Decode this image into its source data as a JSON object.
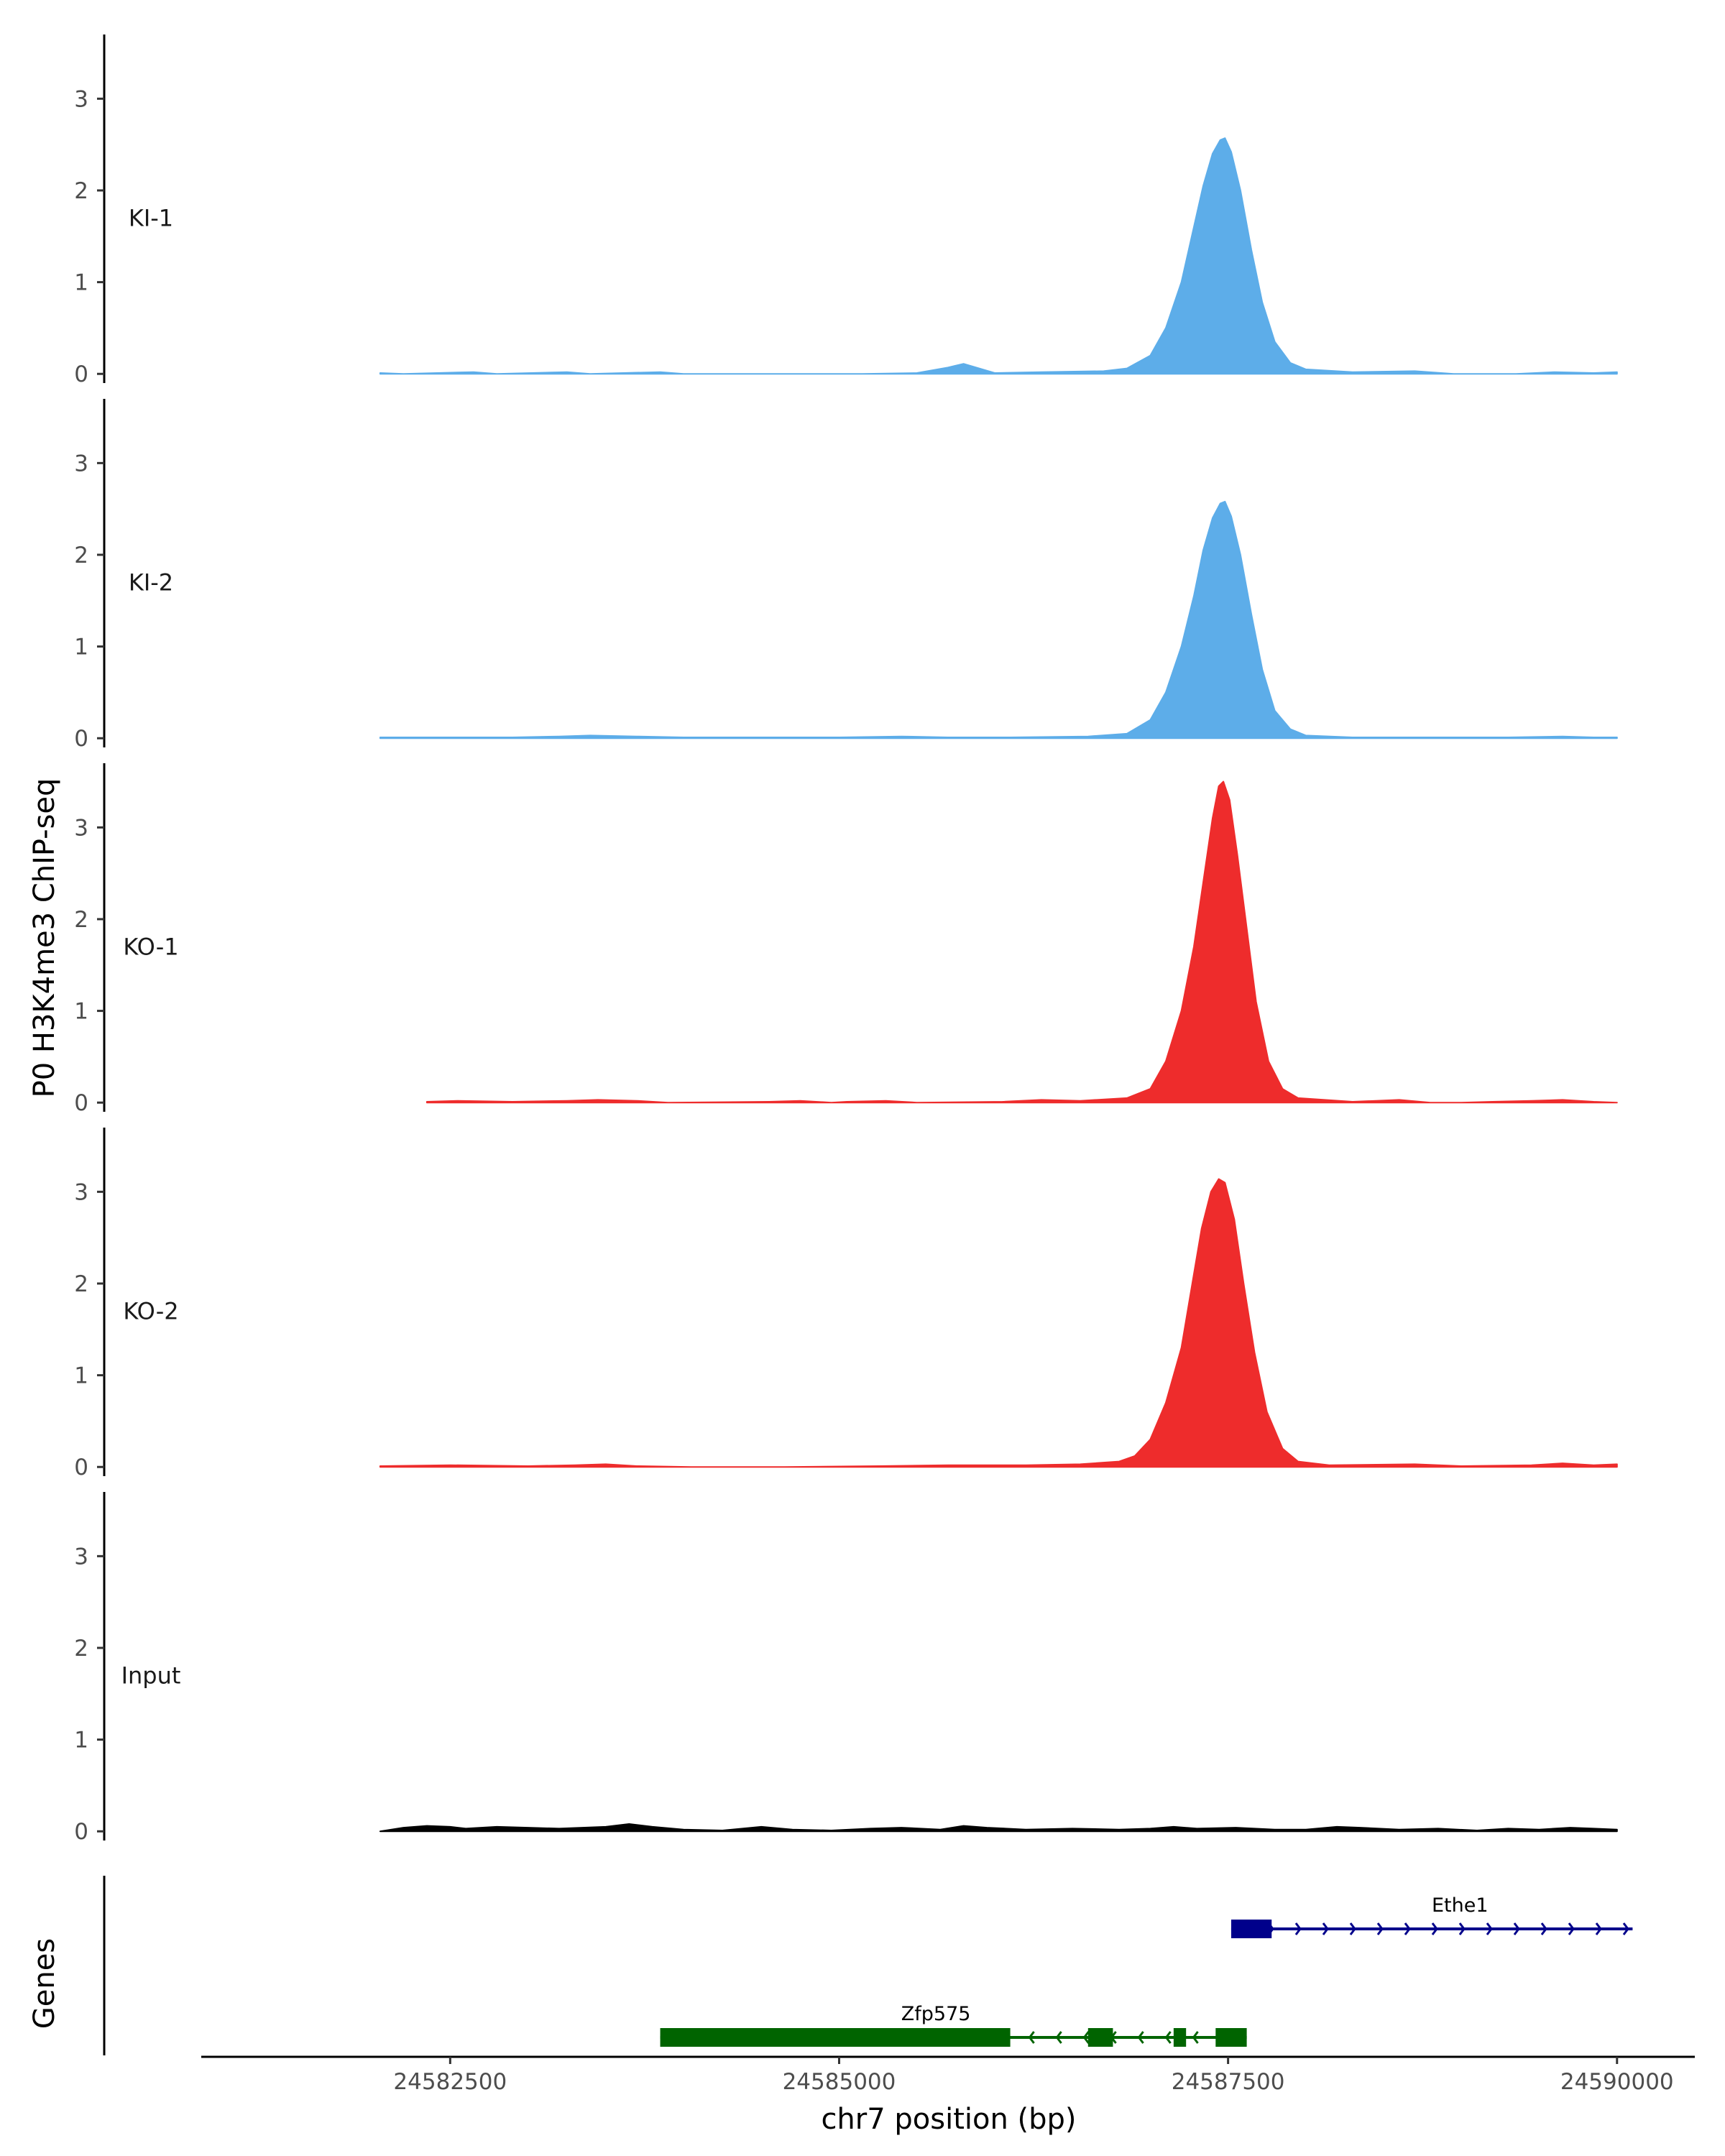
{
  "chart_data": {
    "type": "area",
    "title": "",
    "ylabel": "P0 H3K4me3 ChIP-seq",
    "xlabel": "chr7 position (bp)",
    "xlim": [
      24580900,
      24590500
    ],
    "ylim": [
      -0.1,
      3.7
    ],
    "y_ticks": [
      0,
      1,
      2,
      3
    ],
    "x_ticks": [
      24582500,
      24585000,
      24587500,
      24590000
    ],
    "x_tick_labels": [
      "24582500",
      "24585000",
      "24587500",
      "24590000"
    ],
    "tracks": [
      {
        "name": "KI-1",
        "color": "#5dade9",
        "points": [
          [
            24582050,
            0.01
          ],
          [
            24582200,
            0.0
          ],
          [
            24582650,
            0.02
          ],
          [
            24582800,
            0.0
          ],
          [
            24583250,
            0.02
          ],
          [
            24583400,
            0.0
          ],
          [
            24583850,
            0.02
          ],
          [
            24584000,
            0.0
          ],
          [
            24585150,
            0.0
          ],
          [
            24585500,
            0.01
          ],
          [
            24585700,
            0.07
          ],
          [
            24585800,
            0.11
          ],
          [
            24585900,
            0.06
          ],
          [
            24586000,
            0.01
          ],
          [
            24586300,
            0.02
          ],
          [
            24586700,
            0.03
          ],
          [
            24586850,
            0.06
          ],
          [
            24587000,
            0.2
          ],
          [
            24587100,
            0.5
          ],
          [
            24587200,
            1.0
          ],
          [
            24587280,
            1.6
          ],
          [
            24587340,
            2.05
          ],
          [
            24587400,
            2.4
          ],
          [
            24587450,
            2.55
          ],
          [
            24587480,
            2.57
          ],
          [
            24587520,
            2.42
          ],
          [
            24587580,
            2.0
          ],
          [
            24587650,
            1.35
          ],
          [
            24587720,
            0.78
          ],
          [
            24587800,
            0.35
          ],
          [
            24587900,
            0.12
          ],
          [
            24588000,
            0.05
          ],
          [
            24588300,
            0.02
          ],
          [
            24588700,
            0.03
          ],
          [
            24588950,
            0.0
          ],
          [
            24589350,
            0.0
          ],
          [
            24589600,
            0.02
          ],
          [
            24589850,
            0.01
          ],
          [
            24590000,
            0.02
          ]
        ]
      },
      {
        "name": "KI-2",
        "color": "#5dade9",
        "points": [
          [
            24582050,
            0.01
          ],
          [
            24582400,
            0.01
          ],
          [
            24582900,
            0.01
          ],
          [
            24583200,
            0.02
          ],
          [
            24583400,
            0.03
          ],
          [
            24583700,
            0.02
          ],
          [
            24584000,
            0.01
          ],
          [
            24584500,
            0.01
          ],
          [
            24585000,
            0.01
          ],
          [
            24585400,
            0.02
          ],
          [
            24585700,
            0.01
          ],
          [
            24586100,
            0.01
          ],
          [
            24586600,
            0.02
          ],
          [
            24586850,
            0.05
          ],
          [
            24587000,
            0.2
          ],
          [
            24587100,
            0.5
          ],
          [
            24587200,
            1.0
          ],
          [
            24587280,
            1.55
          ],
          [
            24587340,
            2.05
          ],
          [
            24587400,
            2.4
          ],
          [
            24587450,
            2.56
          ],
          [
            24587480,
            2.58
          ],
          [
            24587520,
            2.42
          ],
          [
            24587580,
            2.0
          ],
          [
            24587650,
            1.35
          ],
          [
            24587720,
            0.75
          ],
          [
            24587800,
            0.3
          ],
          [
            24587900,
            0.1
          ],
          [
            24588000,
            0.03
          ],
          [
            24588300,
            0.01
          ],
          [
            24588800,
            0.01
          ],
          [
            24589300,
            0.01
          ],
          [
            24589650,
            0.02
          ],
          [
            24589850,
            0.01
          ],
          [
            24590000,
            0.01
          ]
        ]
      },
      {
        "name": "KO-1",
        "color": "#ee2c2c",
        "points": [
          [
            24582350,
            0.01
          ],
          [
            24582550,
            0.02
          ],
          [
            24582900,
            0.01
          ],
          [
            24583250,
            0.02
          ],
          [
            24583450,
            0.03
          ],
          [
            24583700,
            0.02
          ],
          [
            24583900,
            0.0
          ],
          [
            24584550,
            0.01
          ],
          [
            24584750,
            0.02
          ],
          [
            24584950,
            0.0
          ],
          [
            24585050,
            0.01
          ],
          [
            24585300,
            0.02
          ],
          [
            24585500,
            0.0
          ],
          [
            24586050,
            0.01
          ],
          [
            24586300,
            0.03
          ],
          [
            24586550,
            0.02
          ],
          [
            24586850,
            0.05
          ],
          [
            24587000,
            0.15
          ],
          [
            24587100,
            0.45
          ],
          [
            24587200,
            1.0
          ],
          [
            24587280,
            1.7
          ],
          [
            24587340,
            2.4
          ],
          [
            24587400,
            3.1
          ],
          [
            24587440,
            3.45
          ],
          [
            24587470,
            3.5
          ],
          [
            24587510,
            3.3
          ],
          [
            24587560,
            2.7
          ],
          [
            24587620,
            1.9
          ],
          [
            24587680,
            1.1
          ],
          [
            24587760,
            0.45
          ],
          [
            24587850,
            0.15
          ],
          [
            24587950,
            0.05
          ],
          [
            24588300,
            0.01
          ],
          [
            24588600,
            0.03
          ],
          [
            24588800,
            0.0
          ],
          [
            24589000,
            0.0
          ],
          [
            24589200,
            0.01
          ],
          [
            24589450,
            0.02
          ],
          [
            24589650,
            0.03
          ],
          [
            24589850,
            0.01
          ],
          [
            24590000,
            0.0
          ]
        ]
      },
      {
        "name": "KO-2",
        "color": "#ee2c2c",
        "points": [
          [
            24582050,
            0.01
          ],
          [
            24582500,
            0.02
          ],
          [
            24583000,
            0.01
          ],
          [
            24583300,
            0.02
          ],
          [
            24583500,
            0.03
          ],
          [
            24583700,
            0.01
          ],
          [
            24584050,
            0.0
          ],
          [
            24584650,
            0.0
          ],
          [
            24585250,
            0.01
          ],
          [
            24585700,
            0.02
          ],
          [
            24586200,
            0.02
          ],
          [
            24586550,
            0.03
          ],
          [
            24586800,
            0.06
          ],
          [
            24586900,
            0.12
          ],
          [
            24587000,
            0.3
          ],
          [
            24587100,
            0.7
          ],
          [
            24587200,
            1.3
          ],
          [
            24587270,
            2.0
          ],
          [
            24587330,
            2.6
          ],
          [
            24587390,
            3.0
          ],
          [
            24587440,
            3.14
          ],
          [
            24587480,
            3.1
          ],
          [
            24587540,
            2.7
          ],
          [
            24587600,
            2.0
          ],
          [
            24587670,
            1.25
          ],
          [
            24587750,
            0.6
          ],
          [
            24587850,
            0.2
          ],
          [
            24587950,
            0.06
          ],
          [
            24588150,
            0.02
          ],
          [
            24588700,
            0.03
          ],
          [
            24589000,
            0.01
          ],
          [
            24589450,
            0.02
          ],
          [
            24589650,
            0.04
          ],
          [
            24589850,
            0.02
          ],
          [
            24590000,
            0.03
          ]
        ]
      },
      {
        "name": "Input",
        "color": "#000000",
        "points": [
          [
            24582050,
            0.0
          ],
          [
            24582200,
            0.04
          ],
          [
            24582350,
            0.06
          ],
          [
            24582500,
            0.05
          ],
          [
            24582600,
            0.03
          ],
          [
            24582800,
            0.05
          ],
          [
            24583000,
            0.04
          ],
          [
            24583200,
            0.03
          ],
          [
            24583500,
            0.05
          ],
          [
            24583650,
            0.08
          ],
          [
            24583800,
            0.05
          ],
          [
            24584000,
            0.02
          ],
          [
            24584250,
            0.01
          ],
          [
            24584500,
            0.05
          ],
          [
            24584700,
            0.02
          ],
          [
            24584950,
            0.01
          ],
          [
            24585200,
            0.03
          ],
          [
            24585400,
            0.04
          ],
          [
            24585650,
            0.02
          ],
          [
            24585800,
            0.06
          ],
          [
            24585950,
            0.04
          ],
          [
            24586200,
            0.02
          ],
          [
            24586500,
            0.03
          ],
          [
            24586800,
            0.02
          ],
          [
            24587000,
            0.03
          ],
          [
            24587150,
            0.05
          ],
          [
            24587300,
            0.03
          ],
          [
            24587550,
            0.04
          ],
          [
            24587800,
            0.02
          ],
          [
            24588000,
            0.02
          ],
          [
            24588200,
            0.05
          ],
          [
            24588350,
            0.04
          ],
          [
            24588600,
            0.02
          ],
          [
            24588850,
            0.03
          ],
          [
            24589100,
            0.01
          ],
          [
            24589300,
            0.03
          ],
          [
            24589500,
            0.02
          ],
          [
            24589700,
            0.04
          ],
          [
            24589850,
            0.03
          ],
          [
            24590000,
            0.02
          ]
        ]
      }
    ],
    "genes_track": {
      "label": "Genes",
      "genes": [
        {
          "name": "Ethe1",
          "color": "#00008b",
          "strand": "+",
          "start": 24587520,
          "end": 24590100,
          "exons": [
            [
              24587520,
              24587780
            ]
          ]
        },
        {
          "name": "Zfp575",
          "color": "#006400",
          "strand": "-",
          "start": 24583850,
          "end": 24587620,
          "exons": [
            [
              24583850,
              24586100
            ],
            [
              24586600,
              24586760
            ],
            [
              24587150,
              24587230
            ],
            [
              24587420,
              24587620
            ]
          ]
        }
      ]
    }
  }
}
